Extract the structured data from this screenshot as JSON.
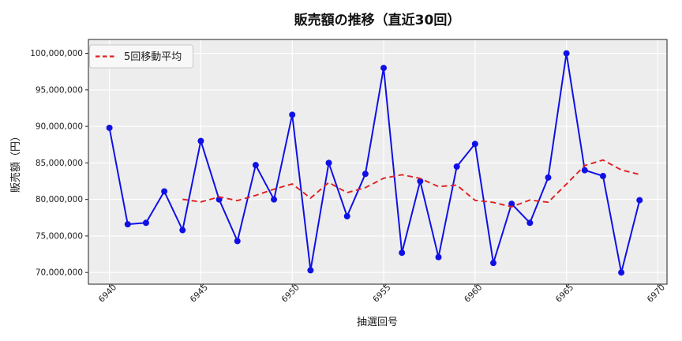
{
  "chart_data": {
    "type": "line",
    "title": "販売額の推移（直近30回）",
    "xlabel": "抽選回号",
    "ylabel": "販売額（円）",
    "x": [
      6940,
      6941,
      6942,
      6943,
      6944,
      6945,
      6946,
      6947,
      6948,
      6949,
      6950,
      6951,
      6952,
      6953,
      6954,
      6955,
      6956,
      6957,
      6958,
      6959,
      6960,
      6961,
      6962,
      6963,
      6964,
      6965,
      6966,
      6967,
      6968,
      6969
    ],
    "series": [
      {
        "name": "販売額",
        "color": "#1010e6",
        "line_style": "solid",
        "marker": "circle",
        "values": [
          89800000,
          76600000,
          76800000,
          81100000,
          75800000,
          88000000,
          80000000,
          74300000,
          84700000,
          80000000,
          91600000,
          70300000,
          85000000,
          77700000,
          83500000,
          98000000,
          72700000,
          82500000,
          72100000,
          84500000,
          87600000,
          71300000,
          79400000,
          76800000,
          83000000,
          100000000,
          84000000,
          83200000,
          70000000,
          79900000
        ]
      },
      {
        "name": "5回移動平均",
        "color": "#e02020",
        "line_style": "dashed",
        "marker": "none",
        "window": 5,
        "values": [
          null,
          null,
          null,
          null,
          80020000,
          79660000,
          80340000,
          79840000,
          80560000,
          81400000,
          82120000,
          80180000,
          82320000,
          80920000,
          81620000,
          82900000,
          83380000,
          82880000,
          81760000,
          81960000,
          79880000,
          79600000,
          78980000,
          79920000,
          79620000,
          82100000,
          84640000,
          85400000,
          84040000,
          83420000
        ]
      }
    ],
    "xlim": [
      6938.85,
      6970.5
    ],
    "ylim": [
      68400000,
      101900000
    ],
    "xticks": [
      6940,
      6945,
      6950,
      6955,
      6960,
      6965,
      6970
    ],
    "yticks": [
      {
        "value": 70000000,
        "label": "70,000,000"
      },
      {
        "value": 75000000,
        "label": "75,000,000"
      },
      {
        "value": 80000000,
        "label": "80,000,000"
      },
      {
        "value": 85000000,
        "label": "85,000,000"
      },
      {
        "value": 90000000,
        "label": "90,000,000"
      },
      {
        "value": 95000000,
        "label": "95,000,000"
      },
      {
        "value": 100000000,
        "label": "100,000,000"
      }
    ],
    "grid": true,
    "legend": {
      "position": "upper-left",
      "entries": [
        "5回移動平均"
      ]
    },
    "colors": {
      "figure_bg": "#ffffff",
      "plot_bg": "#ededed",
      "grid": "#ffffff",
      "spine": "#222222",
      "tick": "#222222",
      "text": "#1c1c1c",
      "legend_bg": "#f8f8f8",
      "legend_border": "#c9c9c9"
    }
  }
}
